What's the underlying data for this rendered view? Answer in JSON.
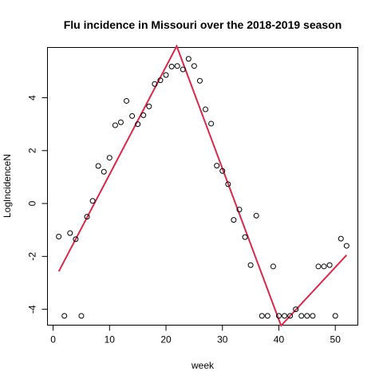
{
  "chart_data": {
    "type": "scatter",
    "title": "Flu incidence in Missouri over the 2018-2019 season",
    "xlabel": "week",
    "ylabel": "LogIncidenceN",
    "xlim": [
      -1,
      54
    ],
    "ylim": [
      -4.6,
      5.9
    ],
    "xticks": [
      0,
      10,
      20,
      30,
      40,
      50
    ],
    "yticks": [
      -4,
      -2,
      0,
      2,
      4
    ],
    "grid": false,
    "legend": false,
    "colors": {
      "points": "#000000",
      "fit": "#d6294b"
    },
    "points": {
      "x": [
        1,
        2,
        3,
        4,
        5,
        6,
        7,
        8,
        9,
        10,
        11,
        12,
        13,
        14,
        15,
        16,
        17,
        18,
        19,
        20,
        21,
        22,
        23,
        24,
        25,
        26,
        27,
        28,
        29,
        30,
        31,
        32,
        33,
        34,
        35,
        36,
        37,
        38,
        39,
        40,
        41,
        42,
        43,
        44,
        45,
        46,
        47,
        48,
        49,
        50,
        51,
        52
      ],
      "y": [
        -1.25,
        -4.25,
        -1.12,
        -1.35,
        -4.25,
        -0.5,
        0.1,
        1.42,
        1.2,
        1.73,
        2.96,
        3.07,
        3.88,
        3.31,
        3.0,
        3.34,
        3.67,
        4.52,
        4.66,
        4.86,
        5.18,
        5.2,
        5.07,
        5.47,
        5.2,
        4.64,
        3.56,
        3.02,
        1.43,
        1.23,
        0.73,
        -0.62,
        -0.23,
        -1.27,
        -2.33,
        -0.46,
        -4.25,
        -4.25,
        -2.38,
        -4.25,
        -4.25,
        -4.25,
        -4.0,
        -4.25,
        -4.25,
        -4.25,
        -2.38,
        -2.38,
        -2.33,
        -4.25,
        -1.33,
        -1.6
      ]
    },
    "fit_line": {
      "x": [
        1,
        21.9,
        40.4,
        52
      ],
      "y": [
        -2.57,
        5.95,
        -4.62,
        -1.95
      ]
    }
  }
}
